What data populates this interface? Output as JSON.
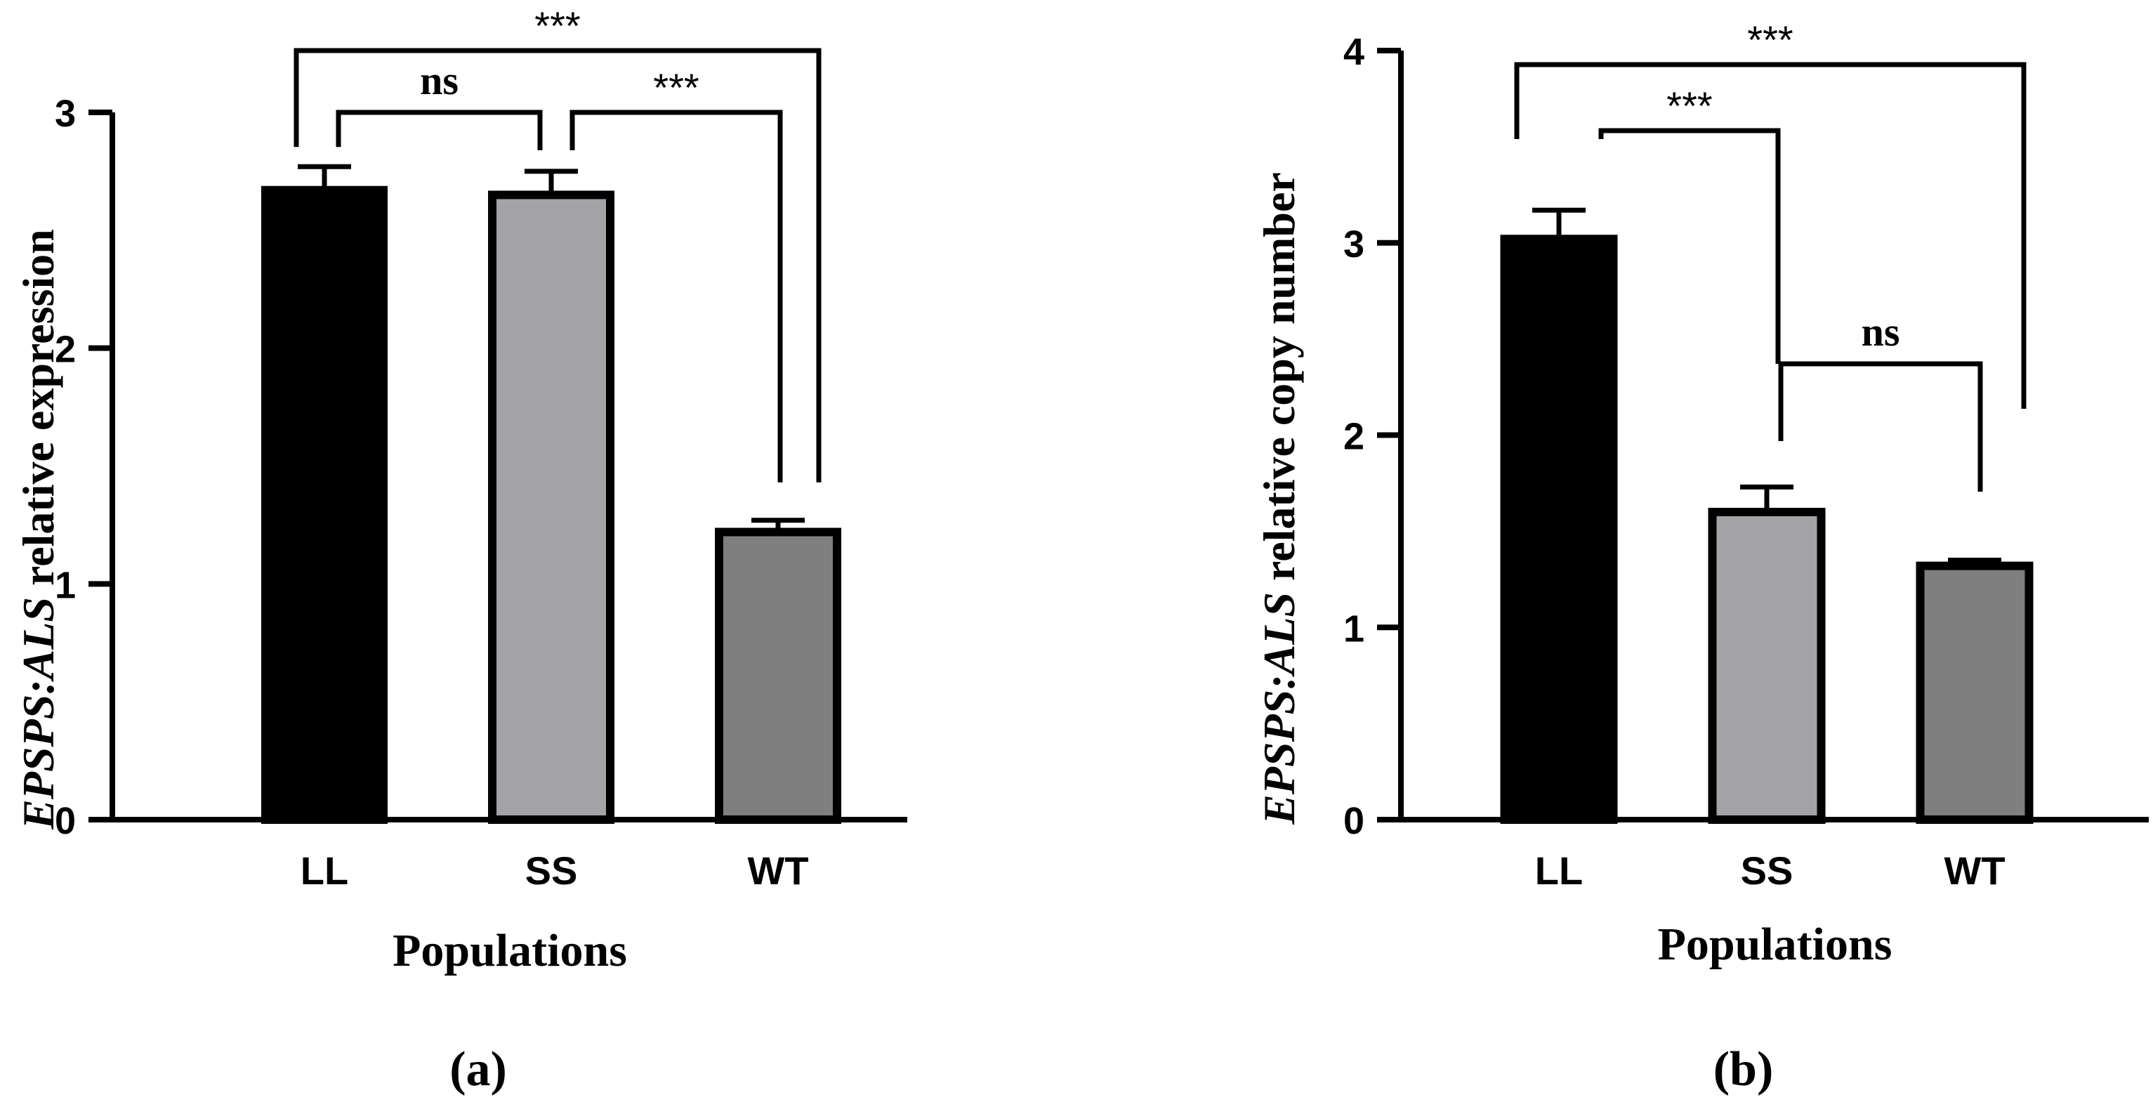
{
  "chart_data": [
    {
      "type": "bar",
      "panel_label": "(a)",
      "title": "",
      "categories": [
        "LL",
        "SS",
        "WT"
      ],
      "values": [
        2.67,
        2.65,
        1.22
      ],
      "errors": [
        0.1,
        0.1,
        0.05
      ],
      "colors": [
        "#000000",
        "#a3a3a6",
        "#7f7f7f"
      ],
      "ylabel_italic": "EPSPS:ALS",
      "ylabel_rest": " relative expression",
      "xlabel": "Populations",
      "ylim": [
        0,
        3
      ],
      "yticks": [
        0,
        1,
        2,
        3
      ],
      "grid": false,
      "significance": [
        {
          "from": "LL",
          "to": "SS",
          "label": "ns"
        },
        {
          "from": "SS",
          "to": "WT",
          "label": "***"
        },
        {
          "from": "LL",
          "to": "WT",
          "label": "***"
        }
      ]
    },
    {
      "type": "bar",
      "panel_label": "(b)",
      "title": "",
      "categories": [
        "LL",
        "SS",
        "WT"
      ],
      "values": [
        3.02,
        1.6,
        1.32
      ],
      "errors": [
        0.15,
        0.13,
        0.03
      ],
      "colors": [
        "#000000",
        "#a3a3a6",
        "#7f7f7f"
      ],
      "ylabel_italic": "EPSPS:ALS",
      "ylabel_rest": " relative copy number",
      "xlabel": "Populations",
      "ylim": [
        0,
        4
      ],
      "yticks": [
        0,
        1,
        2,
        3,
        4
      ],
      "grid": false,
      "significance": [
        {
          "from": "LL",
          "to": "SS",
          "label": "***"
        },
        {
          "from": "SS",
          "to": "WT",
          "label": "ns"
        },
        {
          "from": "LL",
          "to": "WT",
          "label": "***"
        }
      ]
    }
  ]
}
